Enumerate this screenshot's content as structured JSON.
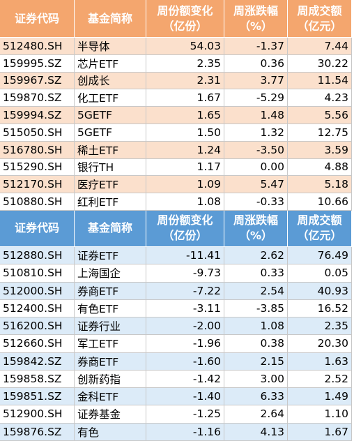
{
  "tables": [
    {
      "header": [
        [
          "证券代码"
        ],
        [
          "基金简称"
        ],
        [
          "周份额变化",
          "（亿份）"
        ],
        [
          "周涨跌幅",
          "（%）"
        ],
        [
          "周成交额",
          "（亿元）"
        ]
      ],
      "rows": [
        [
          "512480.SH",
          "半导体",
          "54.03",
          "-1.37",
          "7.44"
        ],
        [
          "159995.SZ",
          "芯片ETF",
          "2.35",
          "0.36",
          "30.22"
        ],
        [
          "159967.SZ",
          "创成长",
          "2.31",
          "3.77",
          "11.54"
        ],
        [
          "159870.SZ",
          "化工ETF",
          "1.67",
          "-5.29",
          "4.23"
        ],
        [
          "159994.SZ",
          "5GETF",
          "1.65",
          "1.48",
          "5.56"
        ],
        [
          "515050.SH",
          "5GETF",
          "1.50",
          "1.32",
          "12.75"
        ],
        [
          "516780.SH",
          "稀土ETF",
          "1.24",
          "-3.50",
          "3.59"
        ],
        [
          "515290.SH",
          "银行TH",
          "1.17",
          "0.00",
          "4.88"
        ],
        [
          "512170.SH",
          "医疗ETF",
          "1.09",
          "5.47",
          "5.18"
        ],
        [
          "510880.SH",
          "红利ETF",
          "1.08",
          "-0.33",
          "10.66"
        ]
      ]
    },
    {
      "header": [
        [
          "证券代码"
        ],
        [
          "基金简称"
        ],
        [
          "周份额变化",
          "（亿份）"
        ],
        [
          "周涨跌幅",
          "（%）"
        ],
        [
          "周成交额",
          "（亿元）"
        ]
      ],
      "rows": [
        [
          "512880.SH",
          "证券ETF",
          "-11.41",
          "2.62",
          "76.49"
        ],
        [
          "510810.SH",
          "上海国企",
          "-9.73",
          "0.33",
          "0.05"
        ],
        [
          "512000.SH",
          "券商ETF",
          "-7.22",
          "2.54",
          "40.93"
        ],
        [
          "512400.SH",
          "有色ETF",
          "-3.11",
          "-3.85",
          "16.52"
        ],
        [
          "516200.SH",
          "证券行业",
          "-2.00",
          "1.08",
          "2.35"
        ],
        [
          "512660.SH",
          "军工ETF",
          "-1.96",
          "0.38",
          "20.30"
        ],
        [
          "159842.SZ",
          "券商ETF",
          "-1.60",
          "2.15",
          "1.63"
        ],
        [
          "159858.SZ",
          "创新药指",
          "-1.42",
          "3.00",
          "2.52"
        ],
        [
          "159851.SZ",
          "金科ETF",
          "-1.40",
          "6.33",
          "1.49"
        ],
        [
          "512900.SH",
          "证券基金",
          "-1.25",
          "2.64",
          "1.10"
        ],
        [
          "159876.SZ",
          "有色",
          "-1.16",
          "4.13",
          "1.67"
        ]
      ]
    }
  ]
}
